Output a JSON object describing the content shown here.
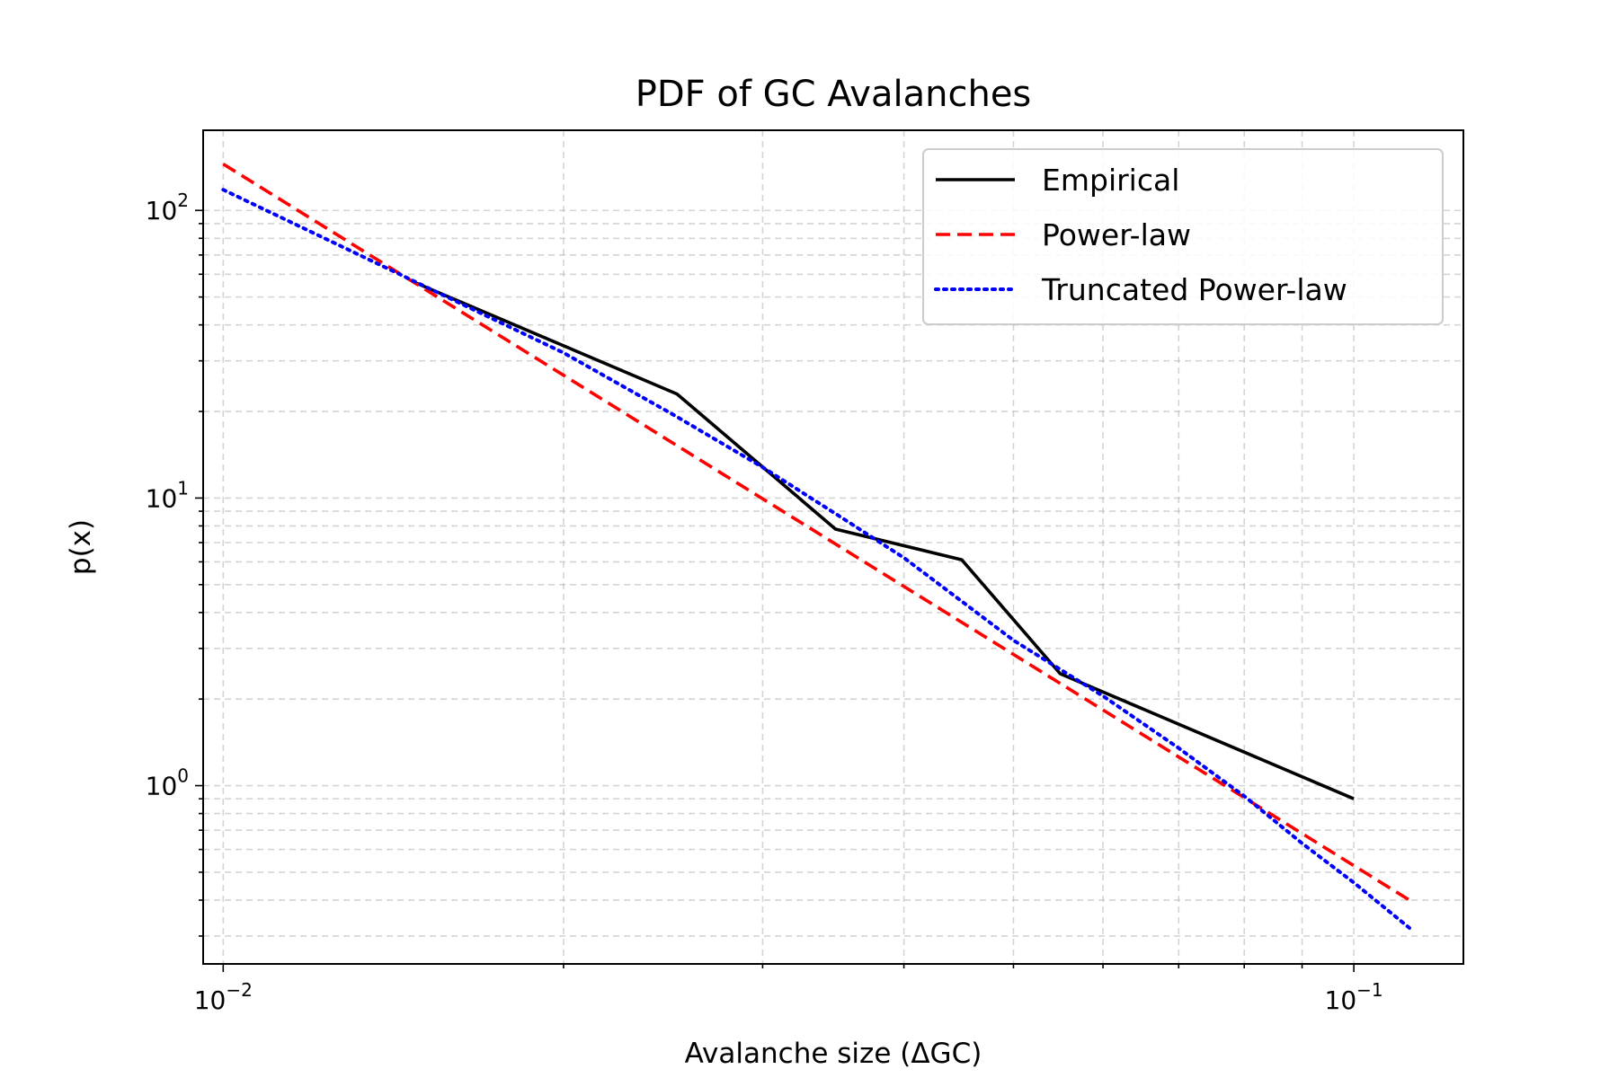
{
  "chart_data": {
    "type": "line",
    "title": "PDF of GC Avalanches",
    "xlabel": "Avalanche size (ΔGC)",
    "ylabel": "p(x)",
    "xscale": "log",
    "yscale": "log",
    "xlim": [
      0.0096,
      0.125
    ],
    "ylim": [
      0.24,
      190
    ],
    "grid": true,
    "legend_position": "top-right",
    "xticks": [
      {
        "value": 0.01,
        "base": "10",
        "exp": "−2"
      },
      {
        "value": 0.1,
        "base": "10",
        "exp": "−1"
      }
    ],
    "yticks": [
      {
        "value": 1,
        "base": "10",
        "exp": "0"
      },
      {
        "value": 10,
        "base": "10",
        "exp": "1"
      },
      {
        "value": 100,
        "base": "10",
        "exp": "2"
      }
    ],
    "series": [
      {
        "name": "Empirical",
        "color": "#000000",
        "style": "solid",
        "x": [
          0.0148,
          0.0252,
          0.0348,
          0.045,
          0.055,
          0.1
        ],
        "y": [
          56,
          23,
          7.8,
          6.1,
          2.45,
          0.9
        ]
      },
      {
        "name": "Power-law",
        "color": "#ff0000",
        "style": "dashed",
        "x": [
          0.01,
          0.112
        ],
        "y": [
          145,
          0.4
        ]
      },
      {
        "name": "Truncated Power-law",
        "color": "#0000ff",
        "style": "dotted",
        "x": [
          0.01,
          0.015,
          0.02,
          0.025,
          0.03,
          0.035,
          0.04,
          0.05,
          0.06,
          0.07,
          0.08,
          0.09,
          0.1,
          0.112
        ],
        "y": [
          118,
          55,
          32,
          19.5,
          12.8,
          8.7,
          6.2,
          3.2,
          2.05,
          1.35,
          0.92,
          0.63,
          0.46,
          0.32
        ]
      }
    ]
  }
}
